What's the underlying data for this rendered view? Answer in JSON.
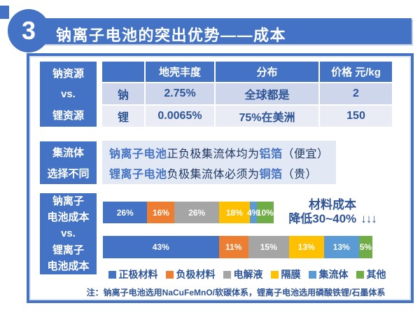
{
  "header": {
    "number": "3",
    "title": "钠离子电池的突出优势——成本"
  },
  "colors": {
    "primary_blue": "#4472C4",
    "dark_navy": "#1F3864",
    "accent_text": "#2F5597",
    "table_row1_bg": "#CDD6EA",
    "table_row2_bg": "#E9ECF5",
    "panel_bg": "#E2E8F4",
    "series": [
      "#4472C4",
      "#ED7D31",
      "#A5A5A5",
      "#FFC000",
      "#5B9BD5",
      "#70AD47"
    ]
  },
  "resources": {
    "side_label": [
      "钠资源",
      "vs.",
      "锂资源"
    ],
    "table": {
      "headers": [
        "",
        "地壳丰度",
        "分布",
        "价格 元/kg"
      ],
      "rows": [
        [
          "钠",
          "2.75%",
          "全球都是",
          "2"
        ],
        [
          "锂",
          "0.0065%",
          "75%在美洲",
          "150"
        ]
      ]
    }
  },
  "collector": {
    "side_label": [
      "集流体",
      "选择不同"
    ],
    "lines": [
      [
        {
          "text": "钠离子电池",
          "em": true
        },
        {
          "text": "正负极集流体均为",
          "em": false
        },
        {
          "text": "铝箔",
          "em": true
        },
        {
          "text": "（便宜）",
          "em": false
        }
      ],
      [
        {
          "text": "锂离子电池",
          "em": true
        },
        {
          "text": "负极集流体必须为",
          "em": false
        },
        {
          "text": "铜箔",
          "em": true
        },
        {
          "text": "（贵）",
          "em": false
        }
      ]
    ]
  },
  "cost": {
    "side_label": [
      "钠离子",
      "电池成本",
      "vs.",
      "锂离子",
      "电池成本"
    ],
    "annotation": {
      "line1": "材料成本",
      "line2": "降低30~40%",
      "arrows": "↓↓↓"
    },
    "legend": [
      "正极材料",
      "负极材料",
      "电解液",
      "隔膜",
      "集流体",
      "其他"
    ]
  },
  "note": "注：钠离子电池选用NaCuFeMnO/软碳体系，锂离子电池选用磷酸铁锂/石墨体系",
  "chart_data": [
    {
      "type": "table",
      "title": "钠资源 vs. 锂资源",
      "columns": [
        "",
        "地壳丰度",
        "分布",
        "价格 元/kg"
      ],
      "rows": [
        [
          "钠",
          "2.75%",
          "全球都是",
          "2"
        ],
        [
          "锂",
          "0.0065%",
          "75%在美洲",
          "150"
        ]
      ]
    },
    {
      "type": "bar",
      "subtype": "horizontal-stacked",
      "title": "钠离子电池成本 vs. 锂离子电池成本",
      "categories": [
        "钠离子电池成本",
        "锂离子电池成本"
      ],
      "series": [
        {
          "name": "正极材料",
          "values": [
            26,
            43
          ],
          "color": "#4472C4"
        },
        {
          "name": "负极材料",
          "values": [
            16,
            11
          ],
          "color": "#ED7D31"
        },
        {
          "name": "电解液",
          "values": [
            26,
            15
          ],
          "color": "#A5A5A5"
        },
        {
          "name": "隔膜",
          "values": [
            18,
            13
          ],
          "color": "#FFC000"
        },
        {
          "name": "集流体",
          "values": [
            4,
            13
          ],
          "color": "#5B9BD5"
        },
        {
          "name": "其他",
          "values": [
            10,
            5
          ],
          "color": "#70AD47"
        }
      ],
      "unit": "%",
      "bar_length_ratio": [
        0.635,
        1.0
      ],
      "bars": [
        {
          "labels": [
            "26%",
            "16%",
            "26%",
            "18%",
            "4%",
            "10%"
          ],
          "values": [
            26,
            16,
            26,
            18,
            4,
            10
          ],
          "relative_width": 0.635
        },
        {
          "labels": [
            "43%",
            "11%",
            "15%",
            "13%",
            "13%",
            "5%"
          ],
          "values": [
            43,
            11,
            15,
            13,
            13,
            5
          ],
          "relative_width": 1.0
        }
      ],
      "annotation": "材料成本降低30~40% ↓↓↓",
      "legend_position": "bottom",
      "grid": false
    }
  ]
}
